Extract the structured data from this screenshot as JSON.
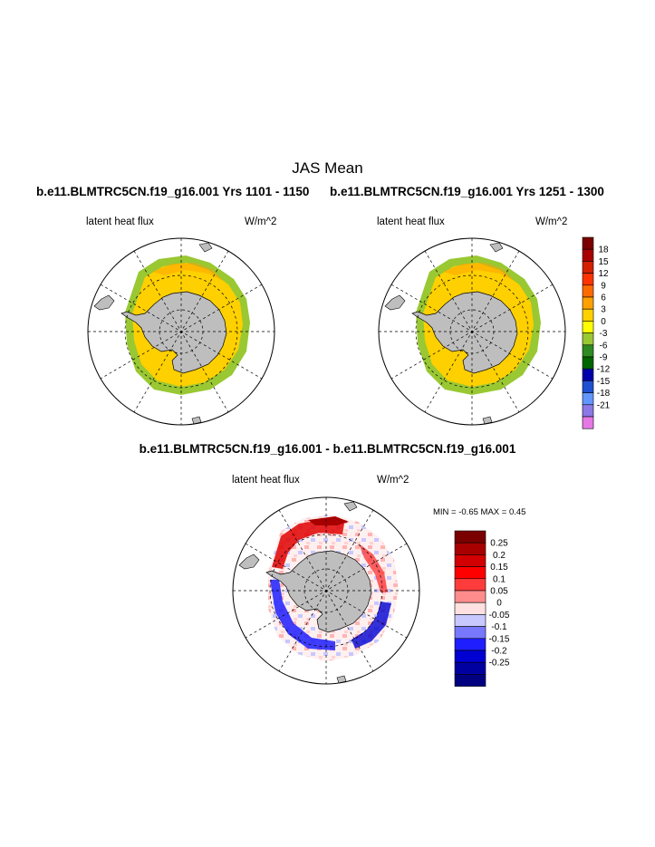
{
  "main_title": "JAS Mean",
  "panels": [
    {
      "case_title": "b.e11.BLMTRC5CN.f19_g16.001  Yrs 1101 - 1150",
      "variable": "latent heat flux",
      "units": "W/m^2"
    },
    {
      "case_title": "b.e11.BLMTRC5CN.f19_g16.001  Yrs 1251 - 1300",
      "variable": "latent heat flux",
      "units": "W/m^2"
    }
  ],
  "diff_panel": {
    "title": "b.e11.BLMTRC5CN.f19_g16.001 - b.e11.BLMTRC5CN.f19_g16.001",
    "variable": "latent heat flux",
    "units": "W/m^2",
    "stats": "MIN =  -0.65 MAX =   0.45"
  },
  "colorbar_main": {
    "labels": [
      "18",
      "15",
      "12",
      "9",
      "6",
      "3",
      "0",
      "-3",
      "-6",
      "-9",
      "-12",
      "-15",
      "-18",
      "-21"
    ],
    "colors": [
      "#7a0000",
      "#a80000",
      "#d42000",
      "#ff3300",
      "#ff6a00",
      "#ffa000",
      "#ffd000",
      "#ffff00",
      "#99c832",
      "#2e8b22",
      "#006400",
      "#0000aa",
      "#1e50d2",
      "#6496ff",
      "#8c78e6",
      "#e678e6"
    ]
  },
  "colorbar_diff": {
    "labels": [
      "0.25",
      "0.2",
      "0.15",
      "0.1",
      "0.05",
      "0",
      "-0.05",
      "-0.1",
      "-0.15",
      "-0.2",
      "-0.25"
    ],
    "colors": [
      "#7a0000",
      "#a80000",
      "#d20000",
      "#ff0000",
      "#ff3c3c",
      "#ff8c8c",
      "#ffe0e0",
      "#c8c8ff",
      "#7878ff",
      "#1e1eff",
      "#0000d2",
      "#0000a0",
      "#000080"
    ]
  }
}
